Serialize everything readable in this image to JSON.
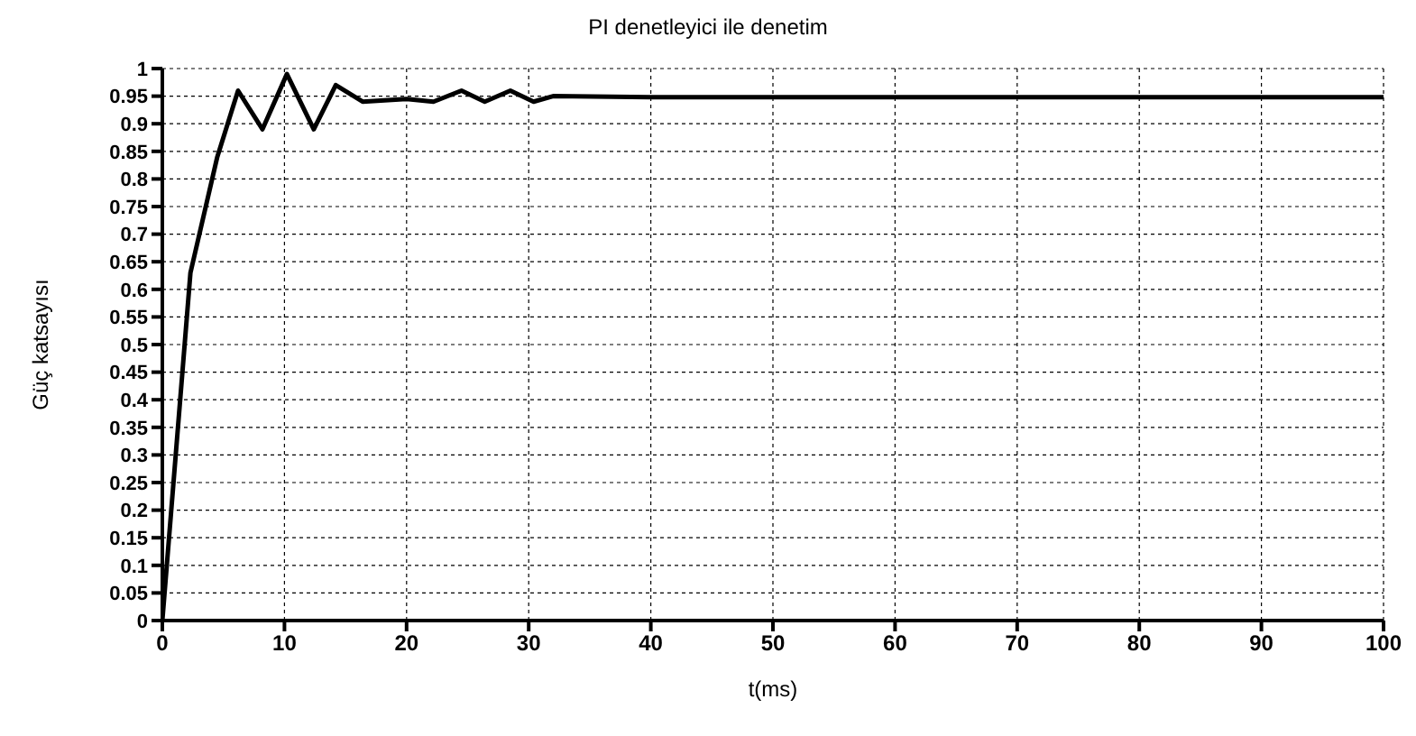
{
  "chart_data": {
    "type": "line",
    "title": "PI denetleyici ile denetim",
    "xlabel": "t(ms)",
    "ylabel": "Güç katsayısı",
    "x": [
      0,
      2.3,
      4.5,
      6.2,
      8.2,
      10.2,
      12.4,
      14.2,
      16.4,
      20,
      22.2,
      24.5,
      26.4,
      28.5,
      30.4,
      32,
      40,
      60,
      80,
      100
    ],
    "series": [
      {
        "color": "#000000",
        "values": [
          0,
          0.63,
          0.84,
          0.96,
          0.89,
          0.99,
          0.89,
          0.97,
          0.94,
          0.945,
          0.94,
          0.96,
          0.94,
          0.96,
          0.94,
          0.95,
          0.948,
          0.948,
          0.948,
          0.948
        ]
      }
    ],
    "xlim": [
      0,
      100
    ],
    "xticks": [
      0,
      10,
      20,
      30,
      40,
      50,
      60,
      70,
      80,
      90,
      100
    ],
    "ylim": [
      0,
      1
    ],
    "yticks": [
      0,
      0.05,
      0.1,
      0.15,
      0.2,
      0.25,
      0.3,
      0.35,
      0.4,
      0.45,
      0.5,
      0.55,
      0.6,
      0.65,
      0.7,
      0.75,
      0.8,
      0.85,
      0.9,
      0.95,
      1
    ],
    "grid": true,
    "marker": "none",
    "line_style": "solid"
  }
}
